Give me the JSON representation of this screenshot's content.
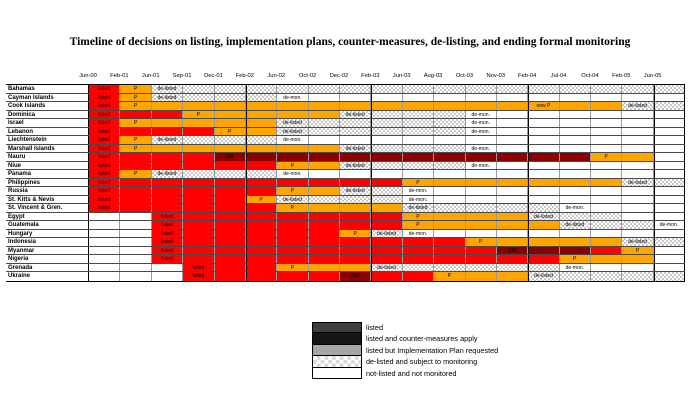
{
  "chart_data": {
    "type": "table",
    "title": "Timeline of decisions on listing, implementation plans, counter-measures, de-listing, and ending formal monitoring",
    "months": [
      "Jun-00",
      "Feb-01",
      "Jun-01",
      "Sep-01",
      "Dec-01",
      "Feb-02",
      "Jun-02",
      "Oct-02",
      "Dec-02",
      "Feb-03",
      "Jun-03",
      "Aug-03",
      "Oct-03",
      "Nov-03",
      "Feb-04",
      "Jul-04",
      "Oct-04",
      "Feb-05",
      "Jun-05"
    ],
    "cell_types": {
      "L": {
        "label": "listed",
        "style": "red"
      },
      "R": {
        "label": "",
        "style": "red"
      },
      "P": {
        "label": "P",
        "style": "orange"
      },
      "NP": {
        "label": "new P",
        "style": "orange"
      },
      "O": {
        "label": "",
        "style": "orange"
      },
      "C": {
        "label": "CM",
        "style": "darkred"
      },
      "D": {
        "label": "",
        "style": "darkred"
      },
      "X": {
        "label": "de-listed",
        "style": "hatch"
      },
      "H": {
        "label": "",
        "style": "hatch"
      },
      "M": {
        "label": "de-mon.",
        "style": "white"
      },
      ".": {
        "label": "",
        "style": "white"
      }
    },
    "rows": [
      {
        "country": "Bahamas",
        "cells": "L P X H H H H H H H H H H H H H H H H"
      },
      {
        "country": "Cayman Islands",
        "cells": "L P X H H H M . . . . . . . . . . . ."
      },
      {
        "country": "Cook Islands",
        "cells": "L P O O O O O O O O O O O O NP O O X H"
      },
      {
        "country": "Dominica",
        "cells": "L R R P O O O O X H H H M . . . . . ."
      },
      {
        "country": "Israel",
        "cells": "L P O O O O X H H H H H M . . . . . ."
      },
      {
        "country": "Lebanon",
        "cells": "L R R R P O X H H H H H M . . . . . ."
      },
      {
        "country": "Liechtenstein",
        "cells": "L P X H H H M . . . . . . . . . . . ."
      },
      {
        "country": "Marshall Islands",
        "cells": "L P O O O O O O X H H H M . . . . . ."
      },
      {
        "country": "Nauru",
        "cells": "L R R R C D D D D D D D D D D D P O ."
      },
      {
        "country": "Niue",
        "cells": "L R R R R R P O X H H H M . . . . . ."
      },
      {
        "country": "Panama",
        "cells": "L P X H H H M . . . . . . . . . . . ."
      },
      {
        "country": "Philippines",
        "cells": "L R R R R R R R R R P O O O O O O X H"
      },
      {
        "country": "Russia",
        "cells": "L R R R R R P O X H M . . . . . . . ."
      },
      {
        "country": "St. Kitts & Nevis",
        "cells": "L R R R R P X H H H M . . . . . . . ."
      },
      {
        "country": "St. Vincent & Gren.",
        "cells": "L R R R R R P O O O X H H H H M . . ."
      },
      {
        "country": "Egypt",
        "cells": ". . L R R R R R R R P O O O X H H . ."
      },
      {
        "country": "Guatemala",
        "cells": ". . L R R R R R R R P O O O O X H H M"
      },
      {
        "country": "Hungary",
        "cells": ". . L R R R R R P X M . . . . . . . ."
      },
      {
        "country": "Indonesia",
        "cells": ". . L R R R R R R R R R P O O O O X H"
      },
      {
        "country": "Myanmar",
        "cells": ". . L R R R R R R R R R R C D D R P ."
      },
      {
        "country": "Nigeria",
        "cells": ". . L R R R R R R R R R R R R P O O ."
      },
      {
        "country": "Grenada",
        "cells": ". . . L R R P O O X H H H H H M . . ."
      },
      {
        "country": "Ukraine",
        "cells": ". . . L R R R R C R R P O O X H H H H"
      }
    ],
    "year_separator_after_columns": [
      "Dec-01",
      "Dec-02",
      "Nov-03",
      "Feb-05"
    ],
    "legend_position": "bottom-center"
  },
  "legend": {
    "items": [
      {
        "label": "listed",
        "swatch": "dark"
      },
      {
        "label": "listed and counter-measures apply",
        "swatch": "black"
      },
      {
        "label": "listed but Implementation Plan requested",
        "swatch": "gray"
      },
      {
        "label": "de-listed and subject to monitoring",
        "swatch": "hatch"
      },
      {
        "label": "not-listed and not monitored",
        "swatch": "white"
      }
    ]
  },
  "colors": {
    "listed_red": "#ff0000",
    "implementation_plan_orange": "#ffa500",
    "counter_measures_darkred": "#8b0000",
    "monitoring_hatch_gray": "#c9c9c9",
    "legend_dark": "#3f3f3f",
    "legend_black": "#161616",
    "legend_gray": "#a6a6a6",
    "grid_line": "#000000"
  }
}
